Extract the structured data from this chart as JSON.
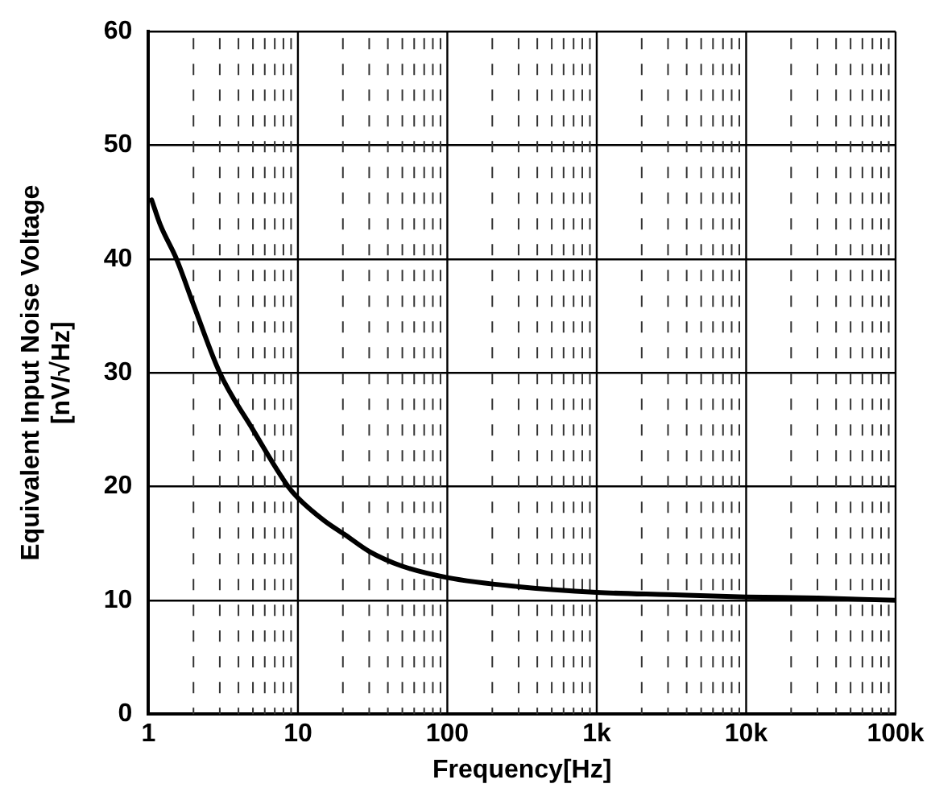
{
  "chart_data": {
    "type": "line",
    "xlabel": "Frequency[Hz]",
    "ylabel": "Equivalent Input Noise Voltage\n[nV/√Hz]",
    "log": "x",
    "grid": true,
    "legend": false,
    "marker": "none",
    "line_style": "solid",
    "xlim": [
      1,
      100000
    ],
    "ylim": [
      0,
      60
    ],
    "xticks": [
      1,
      {
        "value": 2,
        "label": null
      },
      {
        "value": 3,
        "label": null
      },
      {
        "value": 4,
        "label": null
      },
      {
        "value": 5,
        "label": null
      },
      {
        "value": 6,
        "label": null
      },
      {
        "value": 7,
        "label": null
      },
      {
        "value": 8,
        "label": null
      },
      {
        "value": 9,
        "label": null
      },
      10,
      {
        "value": 20,
        "label": null
      },
      {
        "value": 30,
        "label": null
      },
      {
        "value": 40,
        "label": null
      },
      {
        "value": 50,
        "label": null
      },
      {
        "value": 60,
        "label": null
      },
      {
        "value": 70,
        "label": null
      },
      {
        "value": 80,
        "label": null
      },
      {
        "value": 90,
        "label": null
      },
      100,
      {
        "value": 200,
        "label": null
      },
      {
        "value": 300,
        "label": null
      },
      {
        "value": 400,
        "label": null
      },
      {
        "value": 500,
        "label": null
      },
      {
        "value": 600,
        "label": null
      },
      {
        "value": 700,
        "label": null
      },
      {
        "value": 800,
        "label": null
      },
      {
        "value": 900,
        "label": null
      },
      {
        "value": 1000,
        "label": "1k"
      },
      {
        "value": 2000,
        "label": null
      },
      {
        "value": 3000,
        "label": null
      },
      {
        "value": 4000,
        "label": null
      },
      {
        "value": 5000,
        "label": null
      },
      {
        "value": 6000,
        "label": null
      },
      {
        "value": 7000,
        "label": null
      },
      {
        "value": 8000,
        "label": null
      },
      {
        "value": 9000,
        "label": null
      },
      {
        "value": 10000,
        "label": "10k"
      },
      {
        "value": 20000,
        "label": null
      },
      {
        "value": 30000,
        "label": null
      },
      {
        "value": 40000,
        "label": null
      },
      {
        "value": 50000,
        "label": null
      },
      {
        "value": 60000,
        "label": null
      },
      {
        "value": 70000,
        "label": null
      },
      {
        "value": 80000,
        "label": null
      },
      {
        "value": 90000,
        "label": null
      },
      {
        "value": 100000,
        "label": "100k"
      }
    ],
    "yticks": [
      0,
      10,
      20,
      30,
      40,
      50,
      60
    ],
    "series": [
      {
        "color": "#000000",
        "x": [
          1.05,
          1.2,
          1.54,
          2,
          3,
          5,
          8.6,
          10,
          15,
          21,
          30,
          50,
          100,
          300,
          1000,
          3000,
          10000,
          30000,
          100000
        ],
        "values": [
          45.2,
          43,
          40,
          36,
          30,
          25,
          20,
          19,
          17,
          15.7,
          14.3,
          13,
          12,
          11.2,
          10.7,
          10.5,
          10.3,
          10.2,
          10
        ]
      }
    ]
  }
}
